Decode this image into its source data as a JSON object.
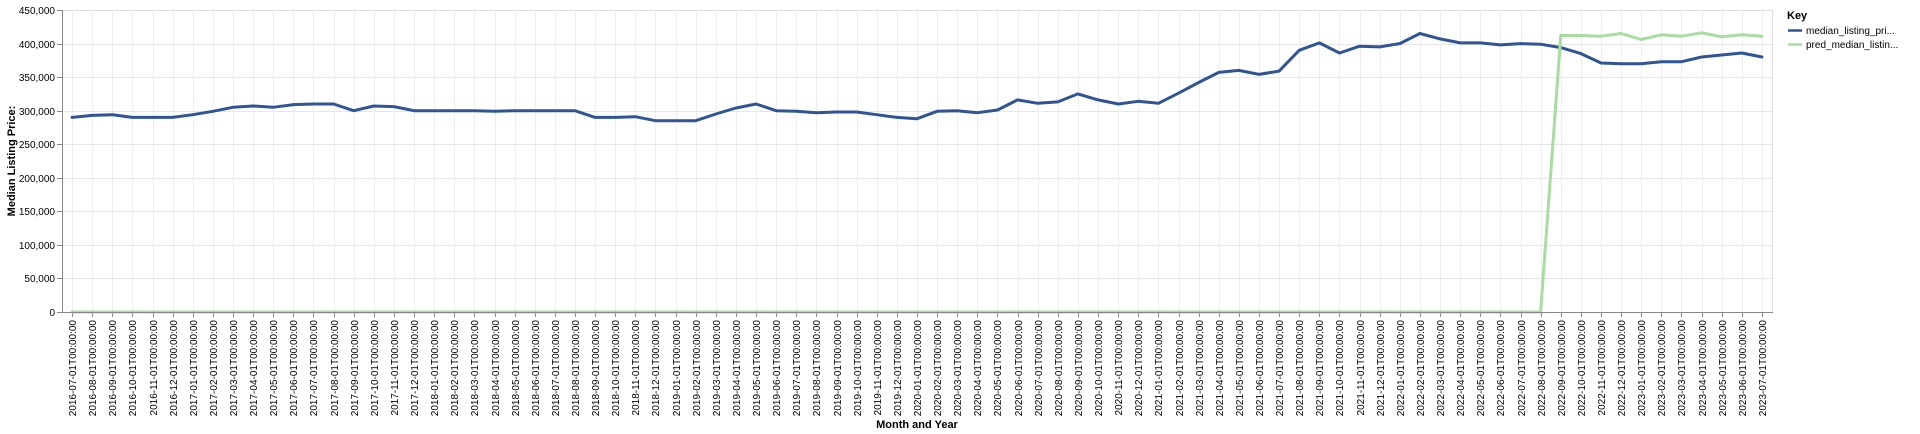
{
  "chart_data": {
    "type": "line",
    "xlabel": "Month and Year",
    "ylabel": "Median Listing Price:",
    "ylim": [
      0,
      450000
    ],
    "yticks": [
      "0",
      "50,000",
      "100,000",
      "150,000",
      "200,000",
      "250,000",
      "300,000",
      "350,000",
      "400,000",
      "450,000"
    ],
    "grid": true,
    "legend": {
      "title": "Key",
      "placement": "right"
    },
    "x": [
      "2016-07-01T00:00:00",
      "2016-08-01T00:00:00",
      "2016-09-01T00:00:00",
      "2016-10-01T00:00:00",
      "2016-11-01T00:00:00",
      "2016-12-01T00:00:00",
      "2017-01-01T00:00:00",
      "2017-02-01T00:00:00",
      "2017-03-01T00:00:00",
      "2017-04-01T00:00:00",
      "2017-05-01T00:00:00",
      "2017-06-01T00:00:00",
      "2017-07-01T00:00:00",
      "2017-08-01T00:00:00",
      "2017-09-01T00:00:00",
      "2017-10-01T00:00:00",
      "2017-11-01T00:00:00",
      "2017-12-01T00:00:00",
      "2018-01-01T00:00:00",
      "2018-02-01T00:00:00",
      "2018-03-01T00:00:00",
      "2018-04-01T00:00:00",
      "2018-05-01T00:00:00",
      "2018-06-01T00:00:00",
      "2018-07-01T00:00:00",
      "2018-08-01T00:00:00",
      "2018-09-01T00:00:00",
      "2018-10-01T00:00:00",
      "2018-11-01T00:00:00",
      "2018-12-01T00:00:00",
      "2019-01-01T00:00:00",
      "2019-02-01T00:00:00",
      "2019-03-01T00:00:00",
      "2019-04-01T00:00:00",
      "2019-05-01T00:00:00",
      "2019-06-01T00:00:00",
      "2019-07-01T00:00:00",
      "2019-08-01T00:00:00",
      "2019-09-01T00:00:00",
      "2019-10-01T00:00:00",
      "2019-11-01T00:00:00",
      "2019-12-01T00:00:00",
      "2020-01-01T00:00:00",
      "2020-02-01T00:00:00",
      "2020-03-01T00:00:00",
      "2020-04-01T00:00:00",
      "2020-05-01T00:00:00",
      "2020-06-01T00:00:00",
      "2020-07-01T00:00:00",
      "2020-08-01T00:00:00",
      "2020-09-01T00:00:00",
      "2020-10-01T00:00:00",
      "2020-11-01T00:00:00",
      "2020-12-01T00:00:00",
      "2021-01-01T00:00:00",
      "2021-02-01T00:00:00",
      "2021-03-01T00:00:00",
      "2021-04-01T00:00:00",
      "2021-05-01T00:00:00",
      "2021-06-01T00:00:00",
      "2021-07-01T00:00:00",
      "2021-08-01T00:00:00",
      "2021-09-01T00:00:00",
      "2021-10-01T00:00:00",
      "2021-11-01T00:00:00",
      "2021-12-01T00:00:00",
      "2022-01-01T00:00:00",
      "2022-02-01T00:00:00",
      "2022-03-01T00:00:00",
      "2022-04-01T00:00:00",
      "2022-05-01T00:00:00",
      "2022-06-01T00:00:00",
      "2022-07-01T00:00:00",
      "2022-08-01T00:00:00",
      "2022-09-01T00:00:00",
      "2022-10-01T00:00:00",
      "2022-11-01T00:00:00",
      "2022-12-01T00:00:00",
      "2023-01-01T00:00:00",
      "2023-02-01T00:00:00",
      "2023-03-01T00:00:00",
      "2023-04-01T00:00:00",
      "2023-05-01T00:00:00",
      "2023-06-01T00:00:00",
      "2023-07-01T00:00:00"
    ],
    "series": [
      {
        "name": "median_listing_pri...",
        "color": "#2f5597",
        "values": [
          290000,
          293000,
          294000,
          290000,
          290000,
          290000,
          294000,
          299000,
          305000,
          307000,
          305000,
          309000,
          310000,
          310000,
          300000,
          307000,
          306000,
          300000,
          300000,
          300000,
          300000,
          299000,
          300000,
          300000,
          300000,
          300000,
          290000,
          290000,
          291000,
          285000,
          285000,
          285000,
          295000,
          304000,
          310000,
          300000,
          299000,
          297000,
          298000,
          298000,
          294000,
          290000,
          288000,
          299000,
          300000,
          297000,
          301000,
          316000,
          311000,
          313000,
          325000,
          316000,
          310000,
          314000,
          311000,
          326000,
          342000,
          357000,
          360000,
          354000,
          359000,
          390000,
          401000,
          386000,
          396000,
          395000,
          400000,
          415000,
          407000,
          401000,
          401000,
          398000,
          400000,
          399000,
          394000,
          385000,
          371000,
          370000,
          370000,
          373000,
          373000,
          380000,
          383000,
          386000,
          380000
        ]
      },
      {
        "name": "pred_median_listin...",
        "color": "#a8dca0",
        "values": [
          0,
          0,
          0,
          0,
          0,
          0,
          0,
          0,
          0,
          0,
          0,
          0,
          0,
          0,
          0,
          0,
          0,
          0,
          0,
          0,
          0,
          0,
          0,
          0,
          0,
          0,
          0,
          0,
          0,
          0,
          0,
          0,
          0,
          0,
          0,
          0,
          0,
          0,
          0,
          0,
          0,
          0,
          0,
          0,
          0,
          0,
          0,
          0,
          0,
          0,
          0,
          0,
          0,
          0,
          0,
          0,
          0,
          0,
          0,
          0,
          0,
          0,
          0,
          0,
          0,
          0,
          0,
          0,
          0,
          0,
          0,
          0,
          0,
          0,
          412000,
          412000,
          411000,
          415000,
          406000,
          413000,
          411000,
          416000,
          410000,
          413000,
          411000
        ]
      }
    ]
  }
}
